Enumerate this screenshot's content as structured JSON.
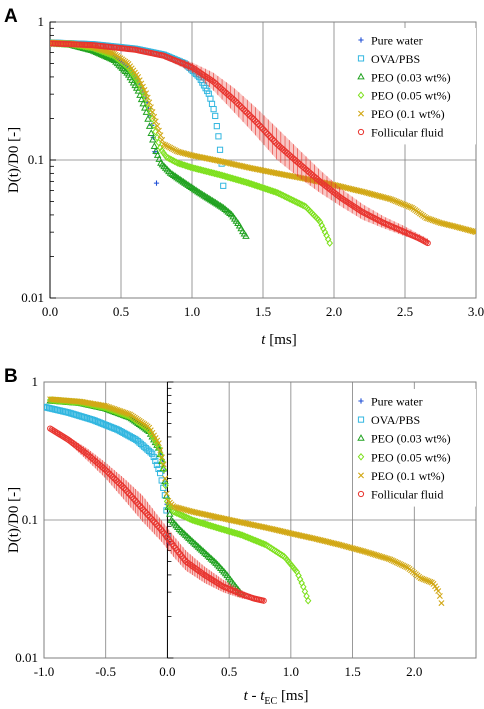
{
  "chart_data": [
    {
      "type": "scatter",
      "panel_label": "A",
      "xlabel_var": "t",
      "xlabel_unit": " [ms]",
      "ylabel": "D(t)/D0 [-]",
      "xlim": [
        0,
        3.0
      ],
      "ylim": [
        0.01,
        1
      ],
      "y_scale": "log",
      "grid": true,
      "legend_position": "top-right",
      "xticks": [
        "0.0",
        "0.5",
        "1.0",
        "1.5",
        "2.0",
        "2.5",
        "3.0"
      ],
      "yticks": [
        "1",
        "0.1",
        "0.01"
      ],
      "series": [
        {
          "name": "Pure water",
          "marker": "plus",
          "color": "#1f4fd6",
          "points": [
            [
              0,
              0.7
            ],
            [
              0.15,
              0.69
            ],
            [
              0.3,
              0.64
            ],
            [
              0.45,
              0.56
            ],
            [
              0.55,
              0.46
            ],
            [
              0.62,
              0.37
            ],
            [
              0.68,
              0.27
            ],
            [
              0.71,
              0.2
            ],
            [
              0.73,
              0.14
            ],
            [
              0.745,
              0.1
            ],
            [
              0.75,
              0.068
            ]
          ]
        },
        {
          "name": "OVA/PBS",
          "marker": "square",
          "color": "#33b7e0",
          "points": [
            [
              0,
              0.71
            ],
            [
              0.3,
              0.69
            ],
            [
              0.6,
              0.64
            ],
            [
              0.8,
              0.58
            ],
            [
              0.95,
              0.5
            ],
            [
              1.05,
              0.4
            ],
            [
              1.12,
              0.3
            ],
            [
              1.16,
              0.22
            ],
            [
              1.19,
              0.14
            ],
            [
              1.205,
              0.1
            ],
            [
              1.215,
              0.085
            ],
            [
              1.22,
              0.065
            ]
          ]
        },
        {
          "name": "PEO (0.03 wt%)",
          "marker": "triangle",
          "color": "#21a221",
          "points": [
            [
              0,
              0.7
            ],
            [
              0.15,
              0.68
            ],
            [
              0.3,
              0.62
            ],
            [
              0.45,
              0.53
            ],
            [
              0.55,
              0.42
            ],
            [
              0.62,
              0.32
            ],
            [
              0.68,
              0.22
            ],
            [
              0.71,
              0.16
            ],
            [
              0.74,
              0.12
            ],
            [
              0.78,
              0.095
            ],
            [
              0.85,
              0.08
            ],
            [
              0.95,
              0.068
            ],
            [
              1.05,
              0.058
            ],
            [
              1.15,
              0.05
            ],
            [
              1.22,
              0.045
            ],
            [
              1.28,
              0.04
            ],
            [
              1.33,
              0.034
            ],
            [
              1.36,
              0.03
            ],
            [
              1.38,
              0.028
            ]
          ]
        },
        {
          "name": "PEO (0.05 wt%)",
          "marker": "diamond",
          "color": "#7ee01e",
          "points": [
            [
              0,
              0.7
            ],
            [
              0.15,
              0.69
            ],
            [
              0.3,
              0.65
            ],
            [
              0.45,
              0.57
            ],
            [
              0.55,
              0.47
            ],
            [
              0.62,
              0.37
            ],
            [
              0.68,
              0.27
            ],
            [
              0.72,
              0.2
            ],
            [
              0.75,
              0.15
            ],
            [
              0.78,
              0.12
            ],
            [
              0.82,
              0.105
            ],
            [
              0.9,
              0.095
            ],
            [
              1.0,
              0.088
            ],
            [
              1.2,
              0.078
            ],
            [
              1.4,
              0.068
            ],
            [
              1.6,
              0.058
            ],
            [
              1.8,
              0.046
            ],
            [
              1.9,
              0.036
            ],
            [
              1.95,
              0.028
            ],
            [
              1.97,
              0.025
            ]
          ]
        },
        {
          "name": "PEO (0.1 wt%)",
          "marker": "cross",
          "color": "#d2a816",
          "points": [
            [
              0,
              0.71
            ],
            [
              0.15,
              0.7
            ],
            [
              0.3,
              0.66
            ],
            [
              0.45,
              0.59
            ],
            [
              0.55,
              0.5
            ],
            [
              0.62,
              0.4
            ],
            [
              0.68,
              0.3
            ],
            [
              0.73,
              0.21
            ],
            [
              0.77,
              0.16
            ],
            [
              0.8,
              0.13
            ],
            [
              0.9,
              0.115
            ],
            [
              1.0,
              0.108
            ],
            [
              1.2,
              0.098
            ],
            [
              1.4,
              0.088
            ],
            [
              1.6,
              0.08
            ],
            [
              1.8,
              0.073
            ],
            [
              2.0,
              0.066
            ],
            [
              2.2,
              0.059
            ],
            [
              2.4,
              0.052
            ],
            [
              2.55,
              0.045
            ],
            [
              2.65,
              0.038
            ],
            [
              2.75,
              0.035
            ],
            [
              2.85,
              0.033
            ],
            [
              2.95,
              0.031
            ],
            [
              3.0,
              0.03
            ]
          ]
        },
        {
          "name": "Follicular fluid",
          "marker": "circle",
          "color": "#e8352f",
          "points": [
            [
              0,
              0.7
            ],
            [
              0.3,
              0.68
            ],
            [
              0.6,
              0.63
            ],
            [
              0.8,
              0.57
            ],
            [
              1.0,
              0.47
            ],
            [
              1.15,
              0.37
            ],
            [
              1.3,
              0.27
            ],
            [
              1.45,
              0.19
            ],
            [
              1.6,
              0.13
            ],
            [
              1.75,
              0.095
            ],
            [
              1.9,
              0.07
            ],
            [
              2.05,
              0.053
            ],
            [
              2.2,
              0.042
            ],
            [
              2.35,
              0.035
            ],
            [
              2.5,
              0.03
            ],
            [
              2.6,
              0.027
            ],
            [
              2.66,
              0.025
            ]
          ],
          "band_upper": [
            0.7,
            0.69,
            0.64,
            0.59,
            0.51,
            0.43,
            0.33,
            0.24,
            0.17,
            0.12,
            0.085,
            0.062,
            0.048,
            0.039,
            0.033,
            0.029,
            0.027
          ],
          "band_lower": [
            0.7,
            0.67,
            0.62,
            0.55,
            0.43,
            0.32,
            0.22,
            0.15,
            0.1,
            0.075,
            0.058,
            0.046,
            0.037,
            0.032,
            0.028,
            0.026,
            0.024
          ]
        }
      ]
    },
    {
      "type": "scatter",
      "panel_label": "B",
      "xlabel_var": "t",
      "xlabel_sep": " - ",
      "xlabel_sub": "EC",
      "xlabel_unit": " [ms]",
      "ylabel": "D(t)/D0 [-]",
      "xlim": [
        -1.0,
        2.5
      ],
      "ylim": [
        0.01,
        1
      ],
      "y_scale": "log",
      "grid": true,
      "legend_position": "top-right",
      "xticks": [
        "-1.0",
        "-0.5",
        "0.0",
        "0.5",
        "1.0",
        "1.5",
        "2.0"
      ],
      "yticks": [
        "1",
        "0.1",
        "0.01"
      ],
      "series": [
        {
          "name": "Pure water",
          "marker": "plus",
          "color": "#1f4fd6",
          "points": [
            [
              -0.95,
              0.73
            ],
            [
              -0.7,
              0.7
            ],
            [
              -0.5,
              0.64
            ],
            [
              -0.3,
              0.56
            ],
            [
              -0.15,
              0.45
            ],
            [
              -0.08,
              0.36
            ],
            [
              -0.04,
              0.27
            ],
            [
              -0.015,
              0.18
            ],
            [
              0,
              0.12
            ],
            [
              0.005,
              0.09
            ],
            [
              0.01,
              0.068
            ]
          ]
        },
        {
          "name": "OVA/PBS",
          "marker": "square",
          "color": "#33b7e0",
          "points": [
            [
              -1.0,
              0.66
            ],
            [
              -0.8,
              0.6
            ],
            [
              -0.6,
              0.53
            ],
            [
              -0.4,
              0.45
            ],
            [
              -0.25,
              0.38
            ],
            [
              -0.12,
              0.3
            ],
            [
              -0.06,
              0.22
            ],
            [
              -0.02,
              0.15
            ],
            [
              0,
              0.1
            ],
            [
              0.005,
              0.075
            ]
          ]
        },
        {
          "name": "PEO (0.03 wt%)",
          "marker": "triangle",
          "color": "#21a221",
          "points": [
            [
              -0.95,
              0.73
            ],
            [
              -0.7,
              0.7
            ],
            [
              -0.5,
              0.64
            ],
            [
              -0.3,
              0.55
            ],
            [
              -0.15,
              0.44
            ],
            [
              -0.07,
              0.33
            ],
            [
              -0.03,
              0.23
            ],
            [
              0,
              0.13
            ],
            [
              0.03,
              0.1
            ],
            [
              0.1,
              0.085
            ],
            [
              0.2,
              0.07
            ],
            [
              0.3,
              0.058
            ],
            [
              0.4,
              0.048
            ],
            [
              0.48,
              0.04
            ],
            [
              0.55,
              0.033
            ],
            [
              0.6,
              0.029
            ]
          ]
        },
        {
          "name": "PEO (0.05 wt%)",
          "marker": "diamond",
          "color": "#7ee01e",
          "points": [
            [
              -0.95,
              0.74
            ],
            [
              -0.7,
              0.71
            ],
            [
              -0.5,
              0.65
            ],
            [
              -0.3,
              0.56
            ],
            [
              -0.15,
              0.45
            ],
            [
              -0.07,
              0.34
            ],
            [
              -0.03,
              0.24
            ],
            [
              0,
              0.13
            ],
            [
              0.05,
              0.115
            ],
            [
              0.2,
              0.1
            ],
            [
              0.4,
              0.088
            ],
            [
              0.6,
              0.078
            ],
            [
              0.8,
              0.066
            ],
            [
              0.95,
              0.054
            ],
            [
              1.05,
              0.042
            ],
            [
              1.1,
              0.033
            ],
            [
              1.14,
              0.026
            ]
          ]
        },
        {
          "name": "PEO (0.1 wt%)",
          "marker": "cross",
          "color": "#d2a816",
          "points": [
            [
              -0.95,
              0.75
            ],
            [
              -0.7,
              0.72
            ],
            [
              -0.5,
              0.67
            ],
            [
              -0.3,
              0.58
            ],
            [
              -0.15,
              0.47
            ],
            [
              -0.07,
              0.36
            ],
            [
              -0.03,
              0.25
            ],
            [
              0,
              0.14
            ],
            [
              0.05,
              0.125
            ],
            [
              0.2,
              0.115
            ],
            [
              0.4,
              0.105
            ],
            [
              0.6,
              0.096
            ],
            [
              0.8,
              0.088
            ],
            [
              1.0,
              0.08
            ],
            [
              1.2,
              0.073
            ],
            [
              1.4,
              0.066
            ],
            [
              1.6,
              0.059
            ],
            [
              1.8,
              0.052
            ],
            [
              1.95,
              0.045
            ],
            [
              2.05,
              0.038
            ],
            [
              2.15,
              0.035
            ],
            [
              2.2,
              0.03
            ],
            [
              2.22,
              0.025
            ]
          ]
        },
        {
          "name": "Follicular fluid",
          "marker": "circle",
          "color": "#e8352f",
          "points": [
            [
              -0.95,
              0.46
            ],
            [
              -0.8,
              0.38
            ],
            [
              -0.65,
              0.3
            ],
            [
              -0.5,
              0.23
            ],
            [
              -0.35,
              0.17
            ],
            [
              -0.2,
              0.12
            ],
            [
              -0.05,
              0.085
            ],
            [
              0.05,
              0.065
            ],
            [
              0.15,
              0.05
            ],
            [
              0.3,
              0.04
            ],
            [
              0.45,
              0.033
            ],
            [
              0.6,
              0.029
            ],
            [
              0.7,
              0.027
            ],
            [
              0.78,
              0.026
            ]
          ],
          "band_upper": [
            0.47,
            0.4,
            0.33,
            0.26,
            0.2,
            0.15,
            0.1,
            0.077,
            0.06,
            0.046,
            0.037,
            0.031,
            0.028,
            0.027
          ],
          "band_lower": [
            0.45,
            0.36,
            0.27,
            0.2,
            0.14,
            0.097,
            0.07,
            0.054,
            0.043,
            0.035,
            0.03,
            0.027,
            0.026,
            0.025
          ]
        }
      ]
    }
  ]
}
